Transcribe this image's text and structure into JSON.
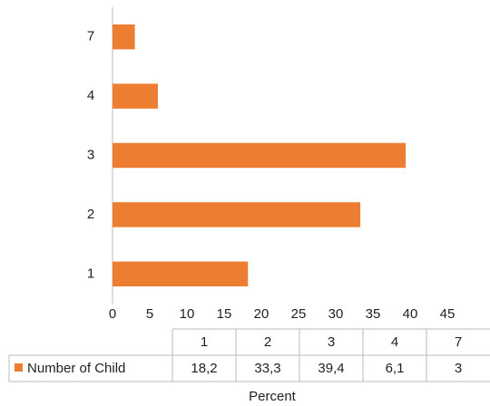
{
  "chart_data": {
    "type": "barh",
    "categories": [
      "1",
      "2",
      "3",
      "4",
      "7"
    ],
    "series": [
      {
        "name": "Number of Child",
        "color": "#ed7d31",
        "values": [
          18.2,
          33.3,
          39.4,
          6.1,
          3
        ],
        "value_labels": [
          "18,2",
          "33,3",
          "39,4",
          "6,1",
          "3"
        ]
      }
    ],
    "xlim": [
      0,
      45
    ],
    "xticks": [
      0,
      5,
      10,
      15,
      20,
      25,
      30,
      35,
      40,
      45
    ],
    "xlabel": "Percent",
    "grid": false
  }
}
